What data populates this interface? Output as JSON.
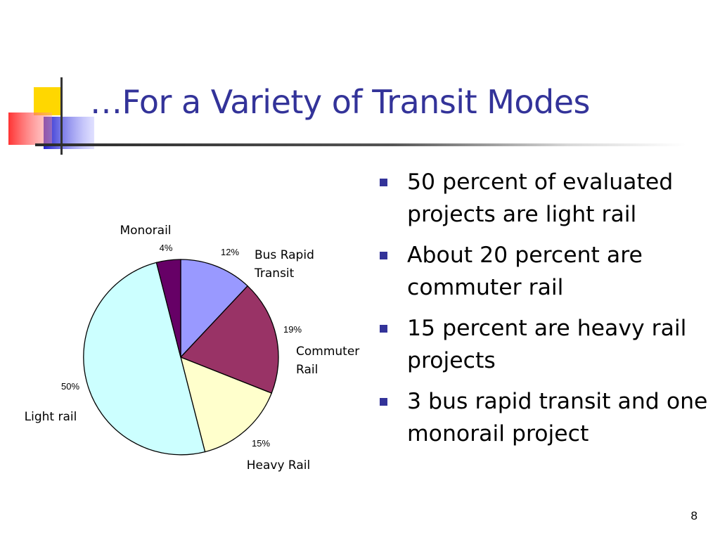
{
  "slide": {
    "title": "…For a Variety of Transit Modes",
    "page_number": "8"
  },
  "bullets": [
    "50 percent of evaluated projects are light rail",
    "About 20 percent are commuter rail",
    "15 percent are heavy rail projects",
    "3 bus rapid transit and one monorail project"
  ],
  "colors": {
    "title": "#333399",
    "bullet": "#333399"
  },
  "chart_data": {
    "type": "pie",
    "title": "",
    "start": "12 o'clock",
    "direction": "clockwise",
    "slices": [
      {
        "name": "Bus Rapid Transit",
        "label_lines": [
          "Bus Rapid",
          "Transit"
        ],
        "value": 12,
        "pct_label": "12%",
        "color": "#9999ff"
      },
      {
        "name": "Commuter Rail",
        "label_lines": [
          "Commuter",
          "Rail"
        ],
        "value": 19,
        "pct_label": "19%",
        "color": "#993366"
      },
      {
        "name": "Heavy Rail",
        "label_lines": [
          "Heavy Rail"
        ],
        "value": 15,
        "pct_label": "15%",
        "color": "#ffffcc"
      },
      {
        "name": "Light rail",
        "label_lines": [
          "Light rail"
        ],
        "value": 50,
        "pct_label": "50%",
        "color": "#ccffff"
      },
      {
        "name": "Monorail",
        "label_lines": [
          "Monorail"
        ],
        "value": 4,
        "pct_label": "4%",
        "color": "#660066"
      }
    ]
  }
}
